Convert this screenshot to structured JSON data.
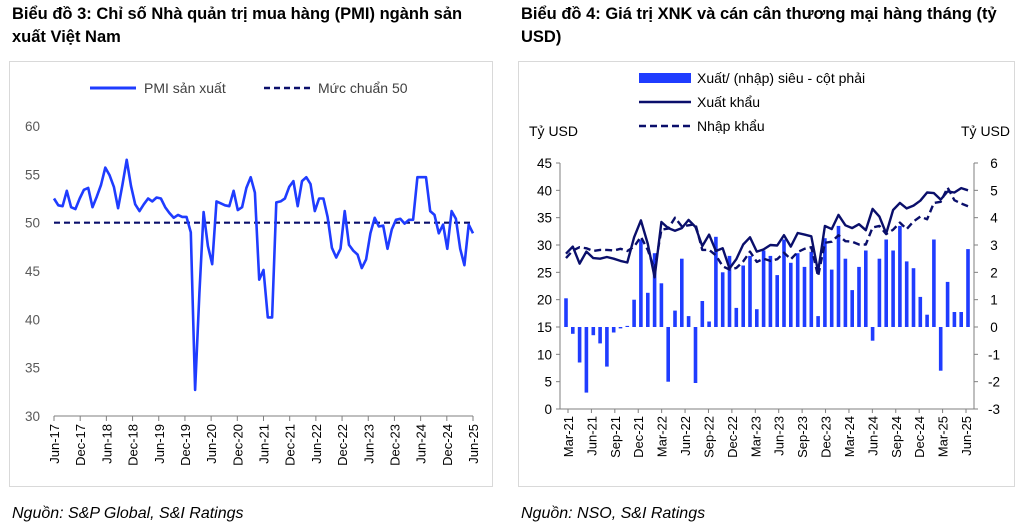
{
  "colors": {
    "blue": "#1f3cff",
    "navy": "#0a0f6b",
    "axis": "#7f7f7f",
    "frame": "#d9d9d9"
  },
  "left": {
    "title": "Biểu đồ 3: Chỉ số Nhà quản trị mua hàng (PMI) ngành sản xuất Việt Nam",
    "source": "Nguồn: S&P Global, S&I Ratings"
  },
  "right": {
    "title": "Biểu đồ 4: Giá trị XNK và cán cân thương mại hàng tháng (tỷ USD)",
    "source": "Nguồn: NSO, S&I Ratings"
  },
  "chart_data": [
    {
      "type": "line",
      "title": "Biểu đồ 3: Chỉ số Nhà quản trị mua hàng (PMI) ngành sản xuất Việt Nam",
      "ylim": [
        30,
        60
      ],
      "yticks": [
        "30",
        "35",
        "40",
        "45",
        "50",
        "55",
        "60"
      ],
      "xlim": [
        0,
        96
      ],
      "xtick_labels": [
        "Jun-17",
        "Dec-17",
        "Jun-18",
        "Dec-18",
        "Jun-19",
        "Dec-19",
        "Jun-20",
        "Dec-20",
        "Jun-21",
        "Dec-21",
        "Jun-22",
        "Dec-22",
        "Jun-23",
        "Dec-23",
        "Jun-24",
        "Dec-24",
        "Jun-25"
      ],
      "legend": "top",
      "grid": false,
      "series": [
        {
          "name": "PMI sản xuất",
          "style": "solid",
          "values": [
            52.5,
            51.8,
            51.7,
            53.3,
            51.6,
            51.4,
            52.5,
            53.4,
            53.6,
            51.6,
            52.7,
            53.9,
            55.7,
            54.9,
            53.7,
            51.5,
            53.9,
            56.5,
            53.8,
            51.9,
            51.2,
            51.9,
            52.5,
            52.2,
            52.6,
            52.5,
            51.6,
            51.0,
            50.5,
            50.8,
            50.6,
            50.6,
            49.0,
            32.7,
            42.7,
            51.1,
            47.6,
            45.7,
            52.2,
            52.0,
            51.8,
            51.7,
            53.3,
            51.3,
            51.6,
            53.6,
            54.7,
            53.1,
            44.1,
            45.1,
            40.2,
            40.2,
            52.1,
            52.2,
            52.5,
            53.7,
            54.3,
            51.7,
            54.3,
            54.7,
            54.0,
            51.2,
            52.5,
            52.5,
            50.6,
            47.4,
            46.4,
            47.3,
            51.2,
            47.7,
            47.1,
            46.7,
            45.3,
            46.2,
            48.9,
            50.5,
            49.6,
            49.7,
            47.3,
            49.3,
            50.3,
            50.4,
            49.9,
            50.3,
            50.3,
            54.7,
            54.7,
            54.7,
            51.2,
            50.8,
            48.9,
            49.8,
            47.3,
            51.2,
            50.4,
            47.3
          ],
          "values_note": "",
          "tail": [
            45.6,
            49.8,
            48.9
          ]
        },
        {
          "name": "Mức chuẩn 50",
          "style": "dashed",
          "values": [
            50
          ]
        }
      ]
    },
    {
      "type": "bar+line",
      "title": "Biểu đồ 4: Giá trị XNK và cán cân thương mại hàng tháng (tỷ USD)",
      "ylabel_left": "Tỷ USD",
      "ylabel_right": "Tỷ USD",
      "ylim_left": [
        0,
        45
      ],
      "yticks_left": [
        "0",
        "5",
        "10",
        "15",
        "20",
        "25",
        "30",
        "35",
        "40",
        "45"
      ],
      "ylim_right": [
        -3,
        6
      ],
      "yticks_right": [
        "-3",
        "-2",
        "-1",
        "0",
        "1",
        "2",
        "3",
        "4",
        "5",
        "6"
      ],
      "xtick_labels": [
        "Mar-21",
        "Jun-21",
        "Sep-21",
        "Dec-21",
        "Mar-22",
        "Jun-22",
        "Sep-22",
        "Dec-22",
        "Mar-23",
        "Jun-23",
        "Sep-23",
        "Dec-23",
        "Mar-24",
        "Jun-24",
        "Sep-24",
        "Dec-24",
        "Mar-25",
        "Jun-25"
      ],
      "legend": "top",
      "grid": false,
      "series": [
        {
          "name": "Xuất/ (nhập) siêu - cột phải",
          "type": "bar",
          "axis": "right",
          "values": [
            1.05,
            -0.25,
            -1.3,
            -2.4,
            -0.3,
            -0.6,
            -1.45,
            -0.2,
            -0.05,
            0.04,
            1.0,
            3.2,
            1.25,
            2.7,
            1.6,
            -2.0,
            0.6,
            2.5,
            0.4,
            -2.05,
            0.95,
            0.2,
            3.3,
            2.0,
            2.6,
            0.7,
            2.25,
            2.6,
            0.65,
            2.8,
            2.6,
            1.9,
            3.2,
            2.35,
            2.7,
            2.2,
            2.75,
            0.4,
            3.25,
            2.1,
            3.7,
            2.5,
            1.35,
            2.2,
            2.8,
            -0.5,
            2.5,
            3.2,
            2.8,
            3.7,
            2.4,
            2.15,
            1.1,
            0.45,
            3.2,
            -1.6,
            1.65,
            0.55,
            0.55,
            2.85
          ]
        },
        {
          "name": "Xuất khẩu",
          "type": "line",
          "axis": "left",
          "style": "solid",
          "values": [
            28.4,
            29.7,
            26.6,
            28.8,
            27.6,
            27.5,
            27.8,
            27.5,
            27.1,
            26.8,
            31.4,
            34.5,
            30.2,
            24.1,
            34.2,
            33.1,
            32.6,
            33.1,
            34.6,
            33.3,
            29.8,
            31.9,
            28.9,
            29.4,
            25.7,
            27.4,
            30.1,
            31.4,
            28.8,
            29.2,
            30.0,
            29.9,
            31.8,
            29.7,
            32.2,
            31.9,
            31.6,
            25.1,
            33.5,
            32.9,
            35.5,
            33.6,
            33.1,
            33.8,
            32.7,
            36.6,
            35.2,
            32.1,
            36.4,
            37.7,
            36.7,
            37.2,
            38.1,
            39.6,
            39.5,
            38.3,
            39.8,
            39.6,
            40.4,
            40.0
          ]
        },
        {
          "name": "Nhập khẩu",
          "type": "line",
          "axis": "left",
          "style": "dashed",
          "values": [
            27.6,
            29.0,
            29.6,
            29.4,
            28.9,
            29.1,
            29.1,
            29.0,
            29.3,
            28.9,
            29.7,
            31.5,
            29.1,
            25.5,
            32.8,
            33.0,
            35.0,
            33.4,
            33.6,
            33.8,
            29.1,
            29.1,
            28.1,
            26.1,
            25.5,
            25.8,
            27.0,
            28.8,
            26.9,
            27.5,
            27.1,
            27.4,
            28.6,
            27.4,
            28.7,
            29.3,
            29.6,
            24.3,
            30.4,
            30.6,
            31.8,
            30.7,
            30.6,
            30.1,
            30.1,
            33.2,
            33.5,
            32.0,
            32.8,
            34.1,
            32.9,
            34.3,
            35.2,
            34.7,
            37.7,
            37.9,
            40.5,
            38.2,
            37.6,
            37.1
          ]
        }
      ]
    }
  ]
}
